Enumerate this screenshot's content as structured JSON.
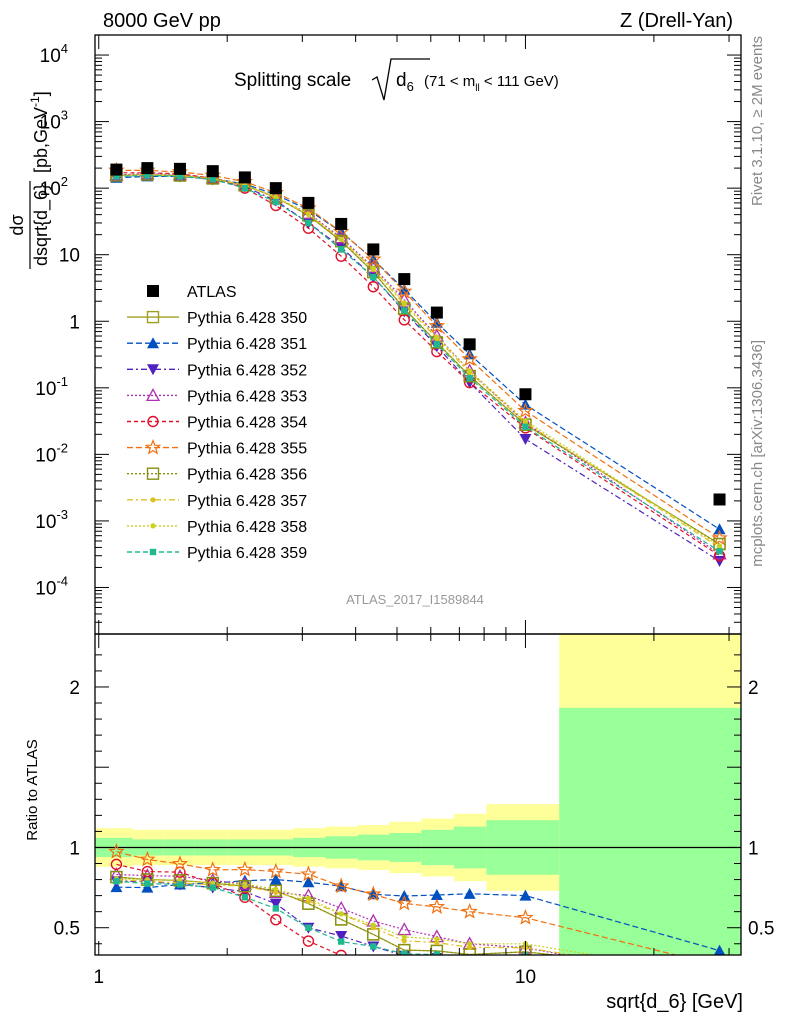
{
  "header": {
    "left": "8000 GeV pp",
    "right": "Z (Drell-Yan)"
  },
  "title": {
    "main": "Splitting scale",
    "sub": "d",
    "subidx": "6",
    "range_pre": "(71 < m",
    "range_idx": "ll",
    "range_post": " < 111 GeV)"
  },
  "watermark": "ATLAS_2017_I1589844",
  "side_labels": {
    "rivet": "Rivet 3.1.10, ≥ 2M events",
    "mcplots": "mcplots.cern.ch [arXiv:1306.3436]"
  },
  "colors": {
    "data": "#000000",
    "band_stat": "#99ff99",
    "band_total": "#ffff99"
  },
  "chart_data": [
    {
      "type": "scatter",
      "panel": "main",
      "ylabel_num": "dσ",
      "ylabel_den": "dsqrt{d_6}",
      "ylabel_unit": "[pb,GeV",
      "ylabel_unit_exp": "-1",
      "ylabel_unit_close": "]",
      "x_scale": "log",
      "y_scale": "log",
      "xlim": [
        0.98,
        32
      ],
      "ylim": [
        2e-05,
        20000
      ],
      "y_ticks": [
        {
          "v": 0.0001,
          "mant": "10",
          "exp": "-4"
        },
        {
          "v": 0.001,
          "mant": "10",
          "exp": "-3"
        },
        {
          "v": 0.01,
          "mant": "10",
          "exp": "-2"
        },
        {
          "v": 0.1,
          "mant": "10",
          "exp": "-1"
        },
        {
          "v": 1,
          "mant": "1",
          "exp": ""
        },
        {
          "v": 10,
          "mant": "10",
          "exp": ""
        },
        {
          "v": 100,
          "mant": "10",
          "exp": "2"
        },
        {
          "v": 1000,
          "mant": "10",
          "exp": "3"
        },
        {
          "v": 10000,
          "mant": "10",
          "exp": "4"
        }
      ],
      "legend_position": "left",
      "x": [
        1.1,
        1.3,
        1.55,
        1.85,
        2.2,
        2.6,
        3.1,
        3.7,
        4.4,
        5.2,
        6.2,
        7.4,
        10.0,
        28.5
      ],
      "data": {
        "name": "ATLAS",
        "values": [
          190,
          200,
          195,
          180,
          145,
          100,
          60,
          29,
          12,
          4.3,
          1.35,
          0.45,
          0.08,
          0.0021
        ]
      },
      "series": [
        {
          "name": "Pythia 6.428 350",
          "color": "#a0a020",
          "dash": "",
          "marker": "square-open",
          "values": [
            155,
            160,
            155,
            140,
            110,
            73,
            39,
            16,
            5.5,
            1.55,
            0.48,
            0.15,
            0.028,
            0.00045
          ]
        },
        {
          "name": "Pythia 6.428 351",
          "color": "#0050c0",
          "dash": "6,3",
          "marker": "triangle-up",
          "values": [
            143,
            150,
            150,
            140,
            115,
            80,
            47,
            22,
            8.5,
            3.0,
            0.95,
            0.32,
            0.056,
            0.00075
          ]
        },
        {
          "name": "Pythia 6.428 352",
          "color": "#5020c0",
          "dash": "6,3,2,3",
          "marker": "triangle-down",
          "values": [
            150,
            158,
            150,
            135,
            105,
            65,
            30,
            13,
            4.6,
            1.4,
            0.42,
            0.12,
            0.017,
            0.00025
          ]
        },
        {
          "name": "Pythia 6.428 353",
          "color": "#b030b0",
          "dash": "2,2",
          "marker": "triangle-open",
          "values": [
            158,
            165,
            160,
            143,
            112,
            72,
            42,
            18,
            6.5,
            2.1,
            0.6,
            0.18,
            0.03,
            0.00032
          ]
        },
        {
          "name": "Pythia 6.428 354",
          "color": "#e0102a",
          "dash": "4,3",
          "marker": "circle-open",
          "values": [
            170,
            170,
            165,
            140,
            100,
            55,
            25,
            9.5,
            3.3,
            1.05,
            0.35,
            0.12,
            0.025,
            0.0003
          ]
        },
        {
          "name": "Pythia 6.428 355",
          "color": "#f07010",
          "dash": "6,3",
          "marker": "star-open",
          "values": [
            185,
            185,
            175,
            155,
            125,
            85,
            50,
            22,
            8.5,
            2.8,
            0.85,
            0.27,
            0.045,
            0.00055
          ]
        },
        {
          "name": "Pythia 6.428 356",
          "color": "#889010",
          "dash": "2,2",
          "marker": "square-open",
          "values": [
            155,
            160,
            155,
            140,
            110,
            73,
            39,
            16,
            5.5,
            1.55,
            0.48,
            0.15,
            0.028,
            0.00045
          ]
        },
        {
          "name": "Pythia 6.428 357",
          "color": "#e0c020",
          "dash": "6,3,2,3",
          "marker": "dot",
          "values": [
            152,
            158,
            152,
            138,
            110,
            72,
            40,
            17,
            6.0,
            1.8,
            0.55,
            0.17,
            0.03,
            0.0004
          ]
        },
        {
          "name": "Pythia 6.428 358",
          "color": "#c8d020",
          "dash": "2,2",
          "marker": "dot",
          "values": [
            153,
            160,
            155,
            140,
            112,
            74,
            41,
            17,
            6.2,
            1.9,
            0.58,
            0.18,
            0.032,
            0.00042
          ]
        },
        {
          "name": "Pythia 6.428 359",
          "color": "#20b890",
          "dash": "5,3",
          "marker": "square-small",
          "values": [
            150,
            155,
            150,
            135,
            100,
            62,
            30,
            12,
            4.6,
            1.45,
            0.45,
            0.14,
            0.026,
            0.00035
          ]
        }
      ]
    },
    {
      "type": "scatter",
      "panel": "ratio",
      "ylabel": "Ratio to ATLAS",
      "xlabel": "sqrt{d_6} [GeV]",
      "x_scale": "log",
      "ylim": [
        0.33,
        2.33
      ],
      "y_ticks": [
        {
          "v": 0.5,
          "label": "0.5"
        },
        {
          "v": 1,
          "label": "1"
        },
        {
          "v": 2,
          "label": "2"
        }
      ],
      "x_ticks": [
        {
          "v": 1,
          "label": "1"
        },
        {
          "v": 10,
          "label": "10"
        }
      ],
      "bands": {
        "edges": [
          0.98,
          1.2,
          1.42,
          1.68,
          2.0,
          2.4,
          2.85,
          3.4,
          4.05,
          4.8,
          5.7,
          6.8,
          8.1,
          12.0,
          32
        ],
        "total_lo": [
          0.88,
          0.89,
          0.89,
          0.89,
          0.89,
          0.89,
          0.88,
          0.87,
          0.86,
          0.84,
          0.82,
          0.79,
          0.73,
          0.33
        ],
        "total_hi": [
          1.12,
          1.11,
          1.11,
          1.11,
          1.11,
          1.11,
          1.12,
          1.13,
          1.14,
          1.16,
          1.18,
          1.21,
          1.27,
          2.33
        ],
        "stat_lo": [
          0.94,
          0.95,
          0.95,
          0.95,
          0.95,
          0.95,
          0.94,
          0.93,
          0.92,
          0.91,
          0.89,
          0.87,
          0.83,
          0.33
        ],
        "stat_hi": [
          1.06,
          1.05,
          1.05,
          1.05,
          1.05,
          1.05,
          1.06,
          1.07,
          1.08,
          1.09,
          1.11,
          1.13,
          1.17,
          1.87
        ]
      }
    }
  ]
}
